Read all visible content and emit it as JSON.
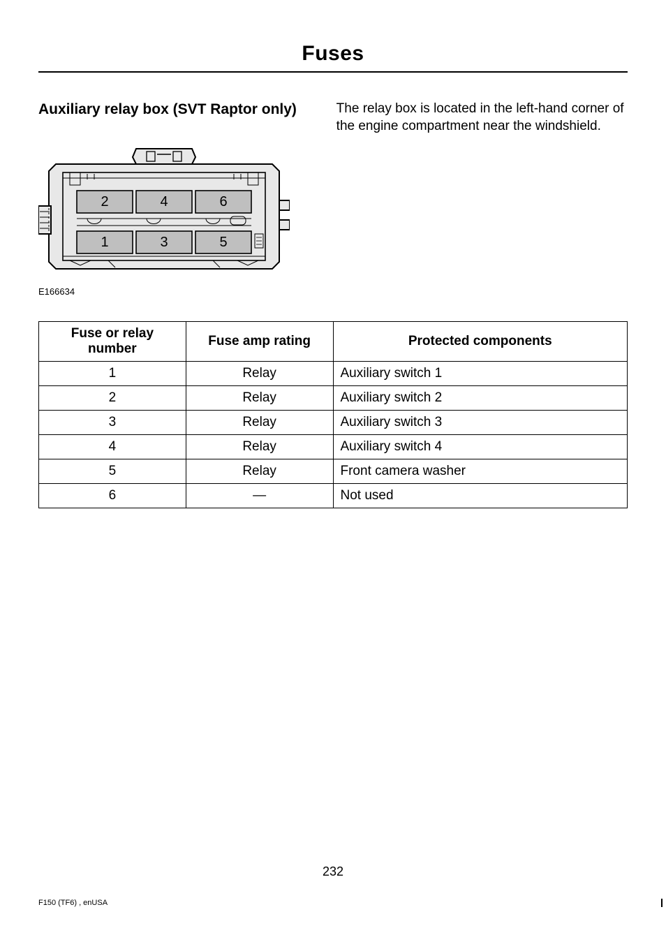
{
  "header": {
    "title": "Fuses"
  },
  "section": {
    "title": "Auxiliary relay box (SVT Raptor only)",
    "description": "The relay box is located in the left-hand corner of the engine compartment near the windshield."
  },
  "diagram": {
    "reference": "E166634",
    "slot_labels": [
      "2",
      "4",
      "6",
      "1",
      "3",
      "5"
    ],
    "slot_fill": "#bfbfbf",
    "outline_fill": "#e8e8e8",
    "stroke": "#000000",
    "label_fontsize": 20
  },
  "table": {
    "columns": [
      "Fuse or relay number",
      "Fuse amp rating",
      "Protected components"
    ],
    "rows": [
      [
        "1",
        "Relay",
        "Auxiliary switch 1"
      ],
      [
        "2",
        "Relay",
        "Auxiliary switch 2"
      ],
      [
        "3",
        "Relay",
        "Auxiliary switch 3"
      ],
      [
        "4",
        "Relay",
        "Auxiliary switch 4"
      ],
      [
        "5",
        "Relay",
        "Front camera washer"
      ],
      [
        "6",
        "—",
        "Not used"
      ]
    ],
    "col_widths_pct": [
      25,
      25,
      50
    ],
    "header_fontweight": 900,
    "cell_fontsize": 19,
    "cell_align": [
      "center",
      "center",
      "left"
    ]
  },
  "footer": {
    "page_number": "232",
    "doc_ref": "F150 (TF6) , enUSA"
  },
  "colors": {
    "text": "#000000",
    "background": "#ffffff",
    "border": "#000000"
  }
}
